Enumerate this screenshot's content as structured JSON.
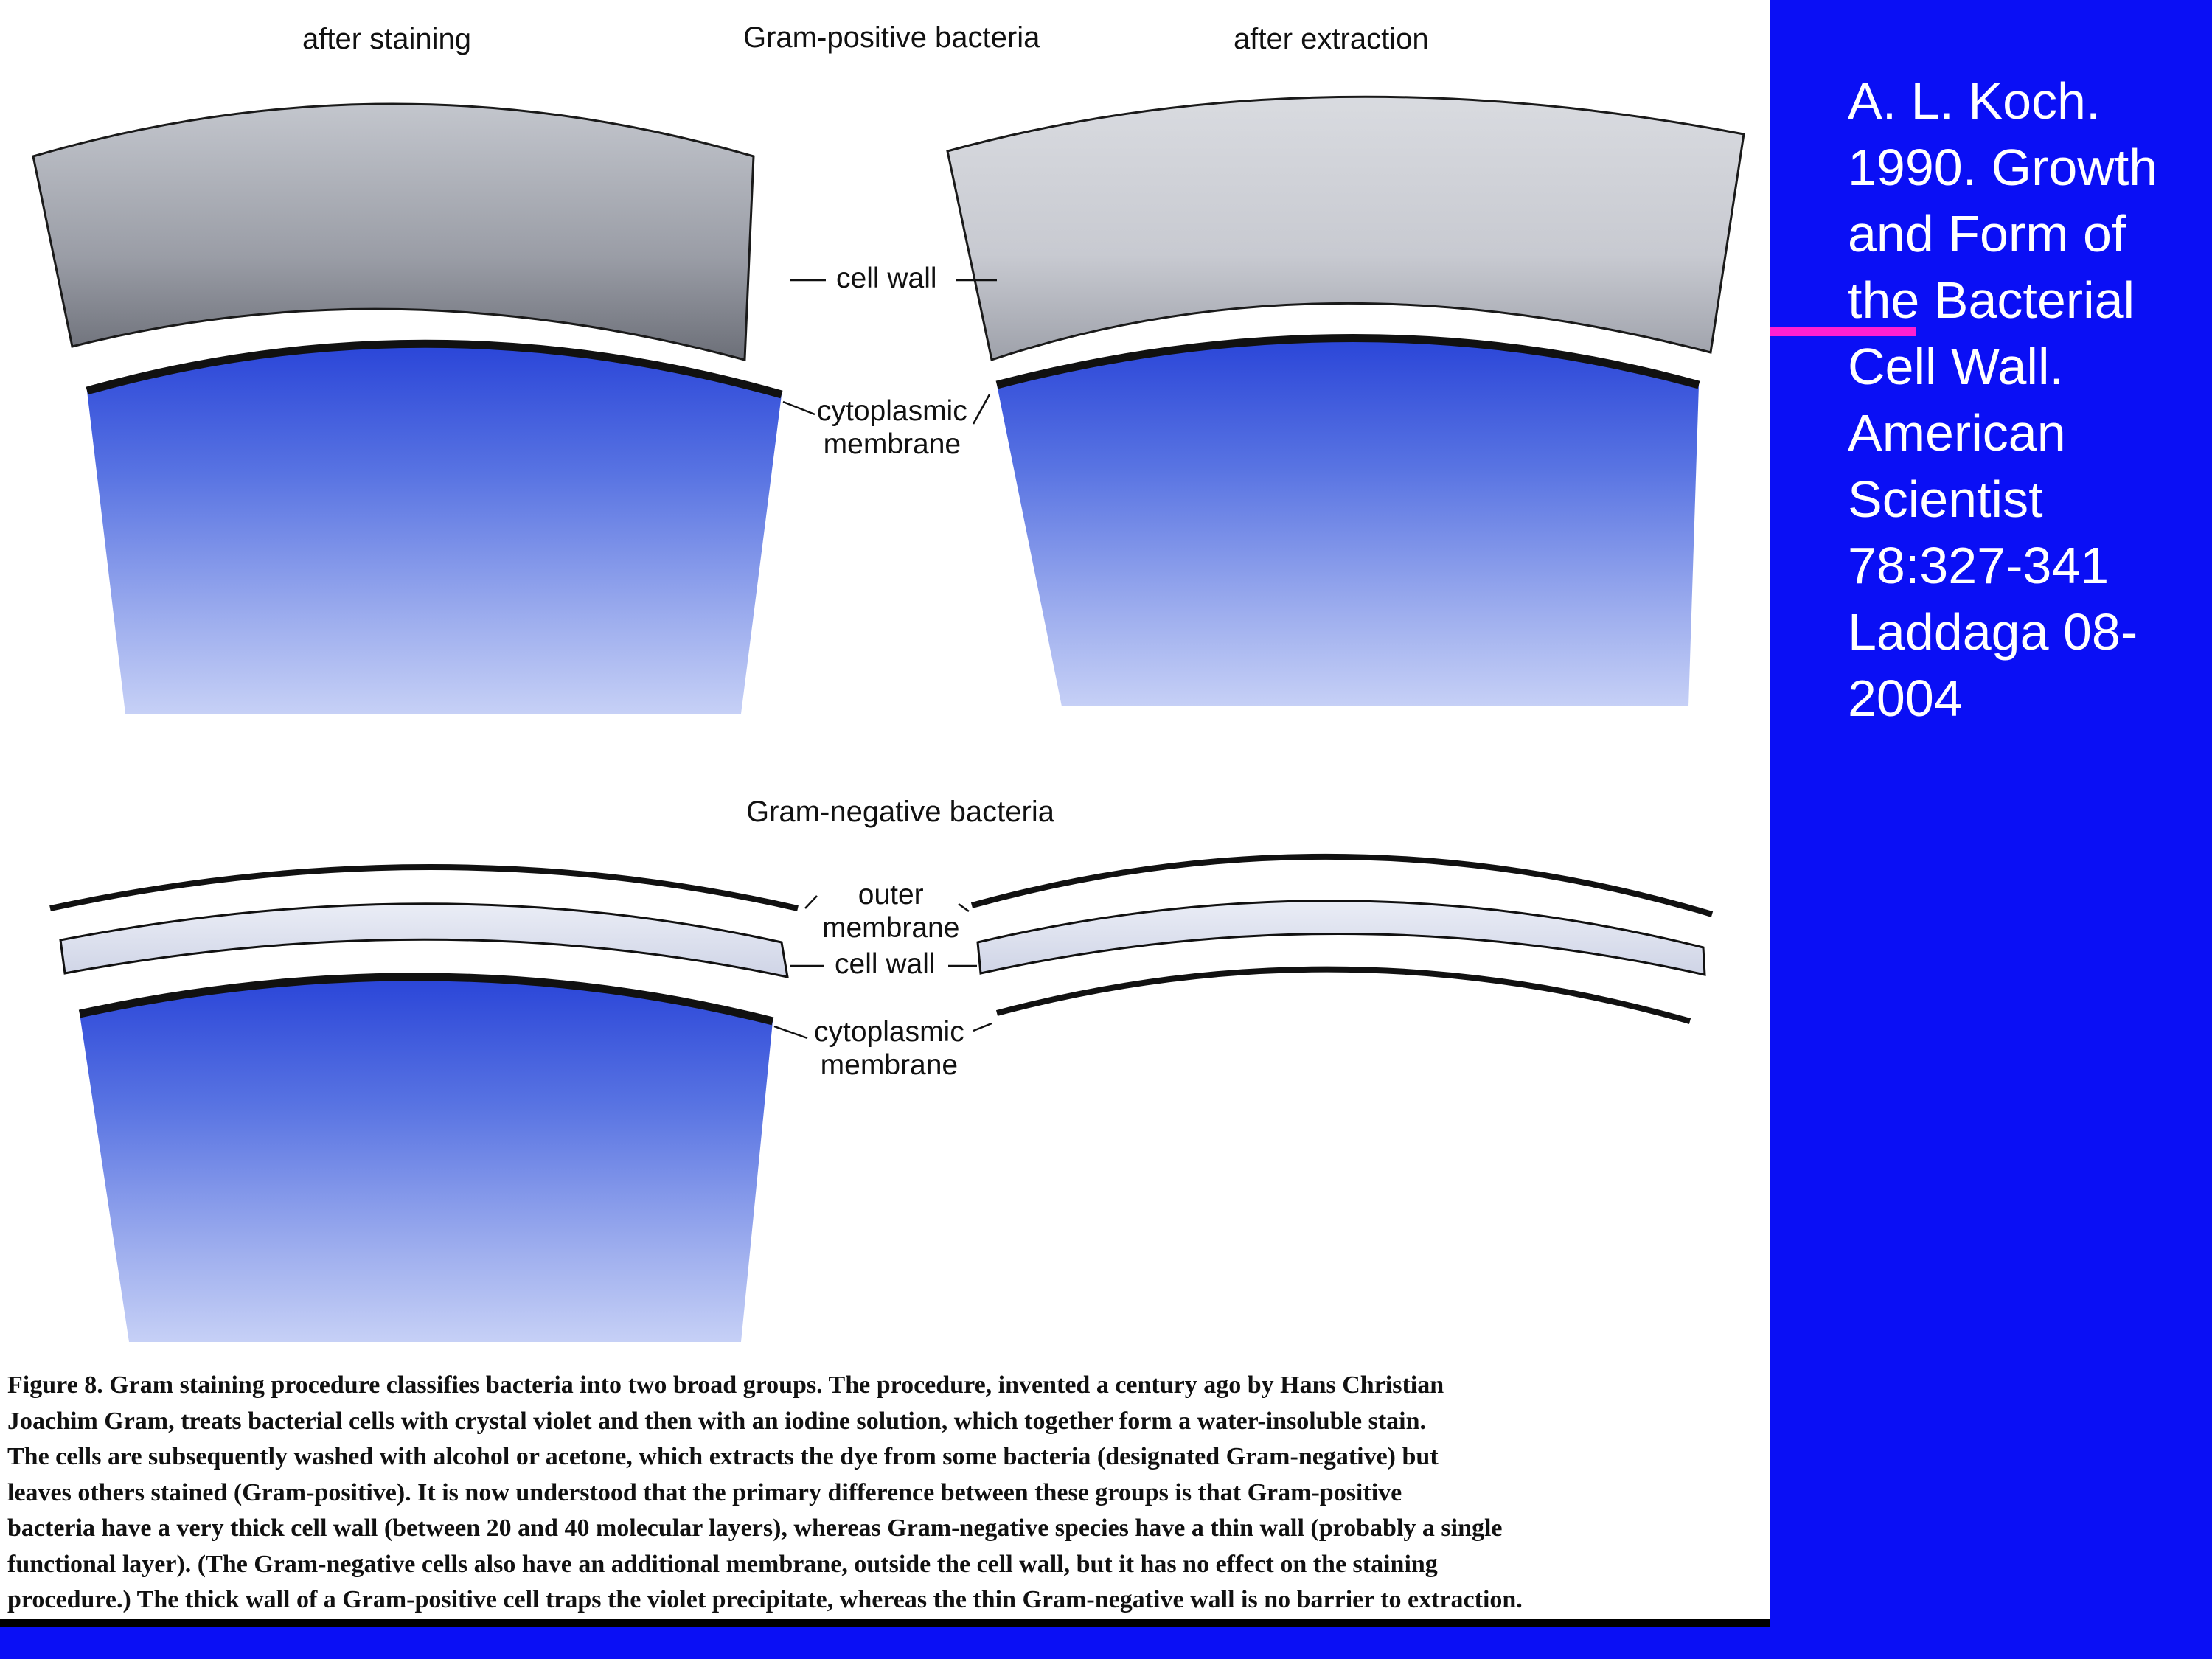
{
  "figure": {
    "header_after_staining": "after staining",
    "header_gram_positive": "Gram-positive bacteria",
    "header_after_extraction": "after extraction",
    "header_gram_negative": "Gram-negative bacteria",
    "label_cell_wall_top": "cell wall",
    "label_cytoplasmic_top_1": "cytoplasmic",
    "label_cytoplasmic_top_2": "membrane",
    "label_outer_1": "outer",
    "label_outer_2": "membrane",
    "label_cell_wall_bottom": "cell wall",
    "label_cytoplasmic_bottom_1": "cytoplasmic",
    "label_cytoplasmic_bottom_2": "membrane"
  },
  "caption": {
    "fig_label": "Figure 8.",
    "lines": [
      " Gram staining procedure classifies bacteria into two broad groups. The procedure, invented a century ago by Hans Christian",
      "Joachim Gram, treats bacterial cells with crystal violet and then with an iodine solution, which together form a water-insoluble stain.",
      "The cells are subsequently washed with alcohol or acetone, which extracts the dye from some bacteria (designated Gram-negative) but",
      "leaves others stained (Gram-positive). It is now understood that the primary difference between these groups is that Gram-positive",
      "bacteria have a very thick cell wall (between 20 and 40 molecular layers), whereas Gram-negative species have a thin wall (probably a single",
      "functional layer). (The Gram-negative cells also have an additional membrane, outside the cell wall, but it has no effect on the staining",
      "procedure.) The thick wall of a Gram-positive cell traps the violet precipitate, whereas the thin Gram-negative wall is no barrier to extraction."
    ]
  },
  "citation": {
    "lines": [
      "A. L. Koch.",
      "1990. Growth",
      "and Form of",
      "the Bacterial",
      "Cell Wall.",
      "American",
      "Scientist",
      "78:327-341",
      "Laddaga 08-",
      "2004"
    ]
  },
  "colors": {
    "slide_background": "#0a0ff5",
    "pointer": "#ff1fd2",
    "stain_blue": "#2a45d8",
    "wall_gray_dark": "#6c6f78",
    "wall_gray_light": "#c5c8cf"
  }
}
